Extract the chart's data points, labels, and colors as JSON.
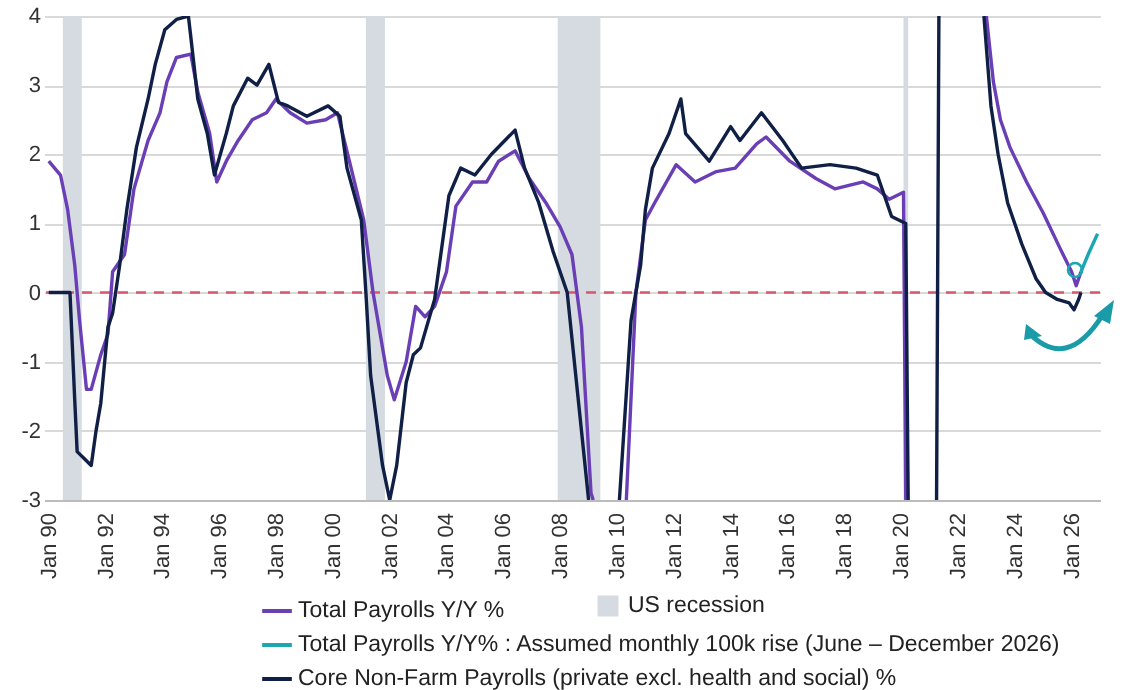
{
  "chart_data": {
    "type": "line",
    "xlim": [
      "1989-11",
      "2027-01"
    ],
    "xticks": [
      {
        "value": "1990-01",
        "label": "Jan 90"
      },
      {
        "value": "1992-01",
        "label": "Jan 92"
      },
      {
        "value": "1994-01",
        "label": "Jan 94"
      },
      {
        "value": "1996-01",
        "label": "Jan 96"
      },
      {
        "value": "1998-01",
        "label": "Jan 98"
      },
      {
        "value": "2000-01",
        "label": "Jan 00"
      },
      {
        "value": "2002-01",
        "label": "Jan 02"
      },
      {
        "value": "2004-01",
        "label": "Jan 04"
      },
      {
        "value": "2006-01",
        "label": "Jan 06"
      },
      {
        "value": "2008-01",
        "label": "Jan 08"
      },
      {
        "value": "2010-01",
        "label": "Jan 10"
      },
      {
        "value": "2012-01",
        "label": "Jan 12"
      },
      {
        "value": "2014-01",
        "label": "Jan 14"
      },
      {
        "value": "2016-01",
        "label": "Jan 16"
      },
      {
        "value": "2018-01",
        "label": "Jan 18"
      },
      {
        "value": "2020-01",
        "label": "Jan 20"
      },
      {
        "value": "2022-01",
        "label": "Jan 22"
      },
      {
        "value": "2024-01",
        "label": "Jan 24"
      },
      {
        "value": "2026-01",
        "label": "Jan 26"
      }
    ],
    "ylim": [
      -3,
      4
    ],
    "yticks": [
      -3,
      -2,
      -1,
      0,
      1,
      2,
      3,
      4
    ],
    "grid": "y",
    "legend": "bottom",
    "line_style": "solid",
    "bands": [
      {
        "axis": "x",
        "from": "1990-07",
        "to": "1991-03",
        "label": "US recession",
        "color": "#d5dbe0"
      },
      {
        "axis": "x",
        "from": "2001-03",
        "to": "2001-11",
        "color": "#d5dbe0"
      },
      {
        "axis": "x",
        "from": "2007-12",
        "to": "2009-06",
        "color": "#d5dbe0"
      },
      {
        "axis": "x",
        "from": "2020-02",
        "to": "2020-04",
        "color": "#d5dbe0"
      }
    ],
    "ref_lines": [
      {
        "axis": "y",
        "value": 0,
        "color": "#d9566c",
        "line_style": "dashed"
      }
    ],
    "series": [
      {
        "name": "Total Payrolls Y/Y %",
        "color": "#6a3fb5",
        "x": [
          "1990-01",
          "1990-06",
          "1990-09",
          "1990-12",
          "1991-02",
          "1991-05",
          "1991-07",
          "1991-11",
          "1992-02",
          "1992-04",
          "1992-09",
          "1993-01",
          "1993-07",
          "1993-12",
          "1994-03",
          "1994-07",
          "1995-01",
          "1995-04",
          "1995-09",
          "1995-12",
          "1996-04",
          "1996-09",
          "1997-03",
          "1997-09",
          "1998-01",
          "1998-07",
          "1999-02",
          "1999-10",
          "2000-03",
          "2000-08",
          "2001-02",
          "2001-06",
          "2001-12",
          "2002-03",
          "2002-08",
          "2002-12",
          "2003-04",
          "2003-08",
          "2004-01",
          "2004-05",
          "2004-12",
          "2005-06",
          "2005-11",
          "2006-06",
          "2006-12",
          "2007-07",
          "2008-01",
          "2008-06",
          "2008-10",
          "2009-02",
          "2009-03",
          "2009-10",
          "2010-05",
          "2010-09",
          "2011-01",
          "2011-05",
          "2012-02",
          "2012-10",
          "2013-07",
          "2014-03",
          "2014-12",
          "2015-04",
          "2016-02",
          "2017-01",
          "2017-09",
          "2018-09",
          "2019-03",
          "2019-08",
          "2020-02",
          "2020-03",
          "2021-06",
          "2023-01",
          "2023-04",
          "2023-07",
          "2023-11",
          "2024-06",
          "2025-01",
          "2025-08",
          "2026-01",
          "2026-03",
          "2026-05"
        ],
        "values": [
          1.9,
          1.7,
          1.2,
          0.4,
          -0.4,
          -1.4,
          -1.4,
          -0.9,
          -0.6,
          0.3,
          0.55,
          1.5,
          2.2,
          2.6,
          3.05,
          3.4,
          3.45,
          2.9,
          2.3,
          1.6,
          1.9,
          2.2,
          2.5,
          2.6,
          2.8,
          2.6,
          2.45,
          2.5,
          2.6,
          1.9,
          1.05,
          0,
          -1.2,
          -1.55,
          -1.0,
          -0.2,
          -0.35,
          -0.2,
          0.3,
          1.25,
          1.6,
          1.6,
          1.9,
          2.05,
          1.65,
          1.3,
          0.95,
          0.55,
          -0.5,
          -2.9,
          -3,
          null,
          -3,
          0,
          1.05,
          1.3,
          1.85,
          1.6,
          1.75,
          1.8,
          2.15,
          2.25,
          1.9,
          1.65,
          1.5,
          1.6,
          1.5,
          1.35,
          1.45,
          -3,
          null,
          4,
          3.05,
          2.5,
          2.1,
          1.6,
          1.15,
          0.65,
          0.3,
          0.1,
          0.3
        ]
      },
      {
        "name": "Total Payrolls Y/Y% : Assumed monthly 100k rise (June – December 2026)",
        "color": "#1aa7b0",
        "x": [
          "2026-05",
          "2026-08",
          "2026-12"
        ],
        "values": [
          0.3,
          0.55,
          0.85
        ]
      },
      {
        "name": "Core Non-Farm Payrolls (private excl. health and social) %",
        "color": "#0f1f45",
        "x": [
          "1990-01",
          "1990-10",
          "1990-12",
          "1991-01",
          "1991-04",
          "1991-07",
          "1991-09",
          "1991-11",
          "1992-02",
          "1992-04",
          "1992-07",
          "1992-10",
          "1993-02",
          "1993-07",
          "1993-10",
          "1994-02",
          "1994-07",
          "1994-12",
          "1995-01",
          "1995-04",
          "1995-08",
          "1995-11",
          "1996-04",
          "1996-07",
          "1997-01",
          "1997-05",
          "1997-10",
          "1998-02",
          "1998-06",
          "1999-02",
          "1999-11",
          "2000-04",
          "2000-07",
          "2001-01",
          "2001-03",
          "2001-05",
          "2001-10",
          "2002-01",
          "2002-04",
          "2002-08",
          "2002-11",
          "2003-02",
          "2003-08",
          "2004-02",
          "2004-07",
          "2005-01",
          "2005-08",
          "2006-06",
          "2006-10",
          "2007-04",
          "2007-10",
          "2008-04",
          "2009-01",
          "2009-07",
          "2010-02",
          "2010-07",
          "2010-11",
          "2011-01",
          "2011-04",
          "2011-11",
          "2012-04",
          "2012-06",
          "2013-04",
          "2014-01",
          "2014-05",
          "2015-02",
          "2015-11",
          "2016-07",
          "2017-07",
          "2018-06",
          "2019-03",
          "2019-09",
          "2020-03",
          "2020-04",
          "2020-10",
          "2021-04",
          "2021-05",
          "2022-03",
          "2022-12",
          "2023-03",
          "2023-06",
          "2023-10",
          "2024-04",
          "2024-10",
          "2025-02",
          "2025-07",
          "2025-12",
          "2026-02",
          "2026-04",
          "2026-05"
        ],
        "values": [
          0,
          0,
          -1.55,
          -2.3,
          -2.4,
          -2.5,
          -2.0,
          -1.6,
          -0.5,
          -0.3,
          0.4,
          1.2,
          2.1,
          2.8,
          3.3,
          3.8,
          3.95,
          4.0,
          3.7,
          2.8,
          2.3,
          1.7,
          2.3,
          2.7,
          3.1,
          3.0,
          3.3,
          2.75,
          2.7,
          2.55,
          2.7,
          2.55,
          1.8,
          1.05,
          0,
          -1.2,
          -2.5,
          -3.0,
          -2.5,
          -1.3,
          -0.9,
          -0.8,
          -0.1,
          1.4,
          1.8,
          1.7,
          2.0,
          2.35,
          1.8,
          1.3,
          0.6,
          0,
          -3,
          null,
          -3,
          -0.4,
          0.4,
          1.2,
          1.8,
          2.3,
          2.8,
          2.3,
          1.9,
          2.4,
          2.2,
          2.6,
          2.2,
          1.8,
          1.85,
          1.8,
          1.7,
          1.1,
          1.0,
          -3,
          null,
          -3,
          4,
          null,
          4,
          2.7,
          2.0,
          1.3,
          0.7,
          0.2,
          0,
          -0.1,
          -0.15,
          -0.25,
          -0.1,
          0
        ]
      }
    ]
  }
}
